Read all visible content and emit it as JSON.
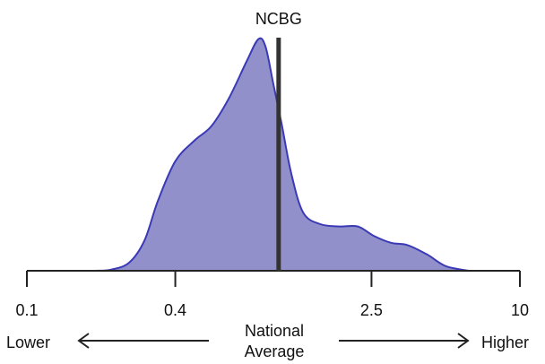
{
  "chart_data": {
    "type": "area",
    "x_scale": "log",
    "xlim": [
      0.1,
      10
    ],
    "x_tick_labels": [
      "0.1",
      "0.4",
      "2.5",
      "10"
    ],
    "x_tick_values": [
      0.1,
      0.4,
      2.5,
      10
    ],
    "reference_line": {
      "label": "NCBG",
      "x": 1.05
    },
    "annotations": {
      "left": "Lower",
      "center_line1": "National",
      "center_line2": "Average",
      "right": "Higher"
    },
    "density_points": [
      [
        0.19,
        0.0
      ],
      [
        0.22,
        0.005
      ],
      [
        0.26,
        0.035
      ],
      [
        0.3,
        0.13
      ],
      [
        0.34,
        0.3
      ],
      [
        0.4,
        0.47
      ],
      [
        0.48,
        0.56
      ],
      [
        0.56,
        0.62
      ],
      [
        0.66,
        0.74
      ],
      [
        0.78,
        0.9
      ],
      [
        0.87,
        0.994
      ],
      [
        0.93,
        0.96
      ],
      [
        1.0,
        0.8
      ],
      [
        1.08,
        0.63
      ],
      [
        1.18,
        0.42
      ],
      [
        1.32,
        0.25
      ],
      [
        1.55,
        0.2
      ],
      [
        1.85,
        0.19
      ],
      [
        2.2,
        0.19
      ],
      [
        2.55,
        0.15
      ],
      [
        3.0,
        0.12
      ],
      [
        3.5,
        0.11
      ],
      [
        4.2,
        0.07
      ],
      [
        5.0,
        0.02
      ],
      [
        6.2,
        0.0
      ]
    ],
    "colors": {
      "fill": "#9190ca",
      "stroke": "#3b3ab6",
      "reference_line": "#333333",
      "axis": "#222222"
    }
  }
}
